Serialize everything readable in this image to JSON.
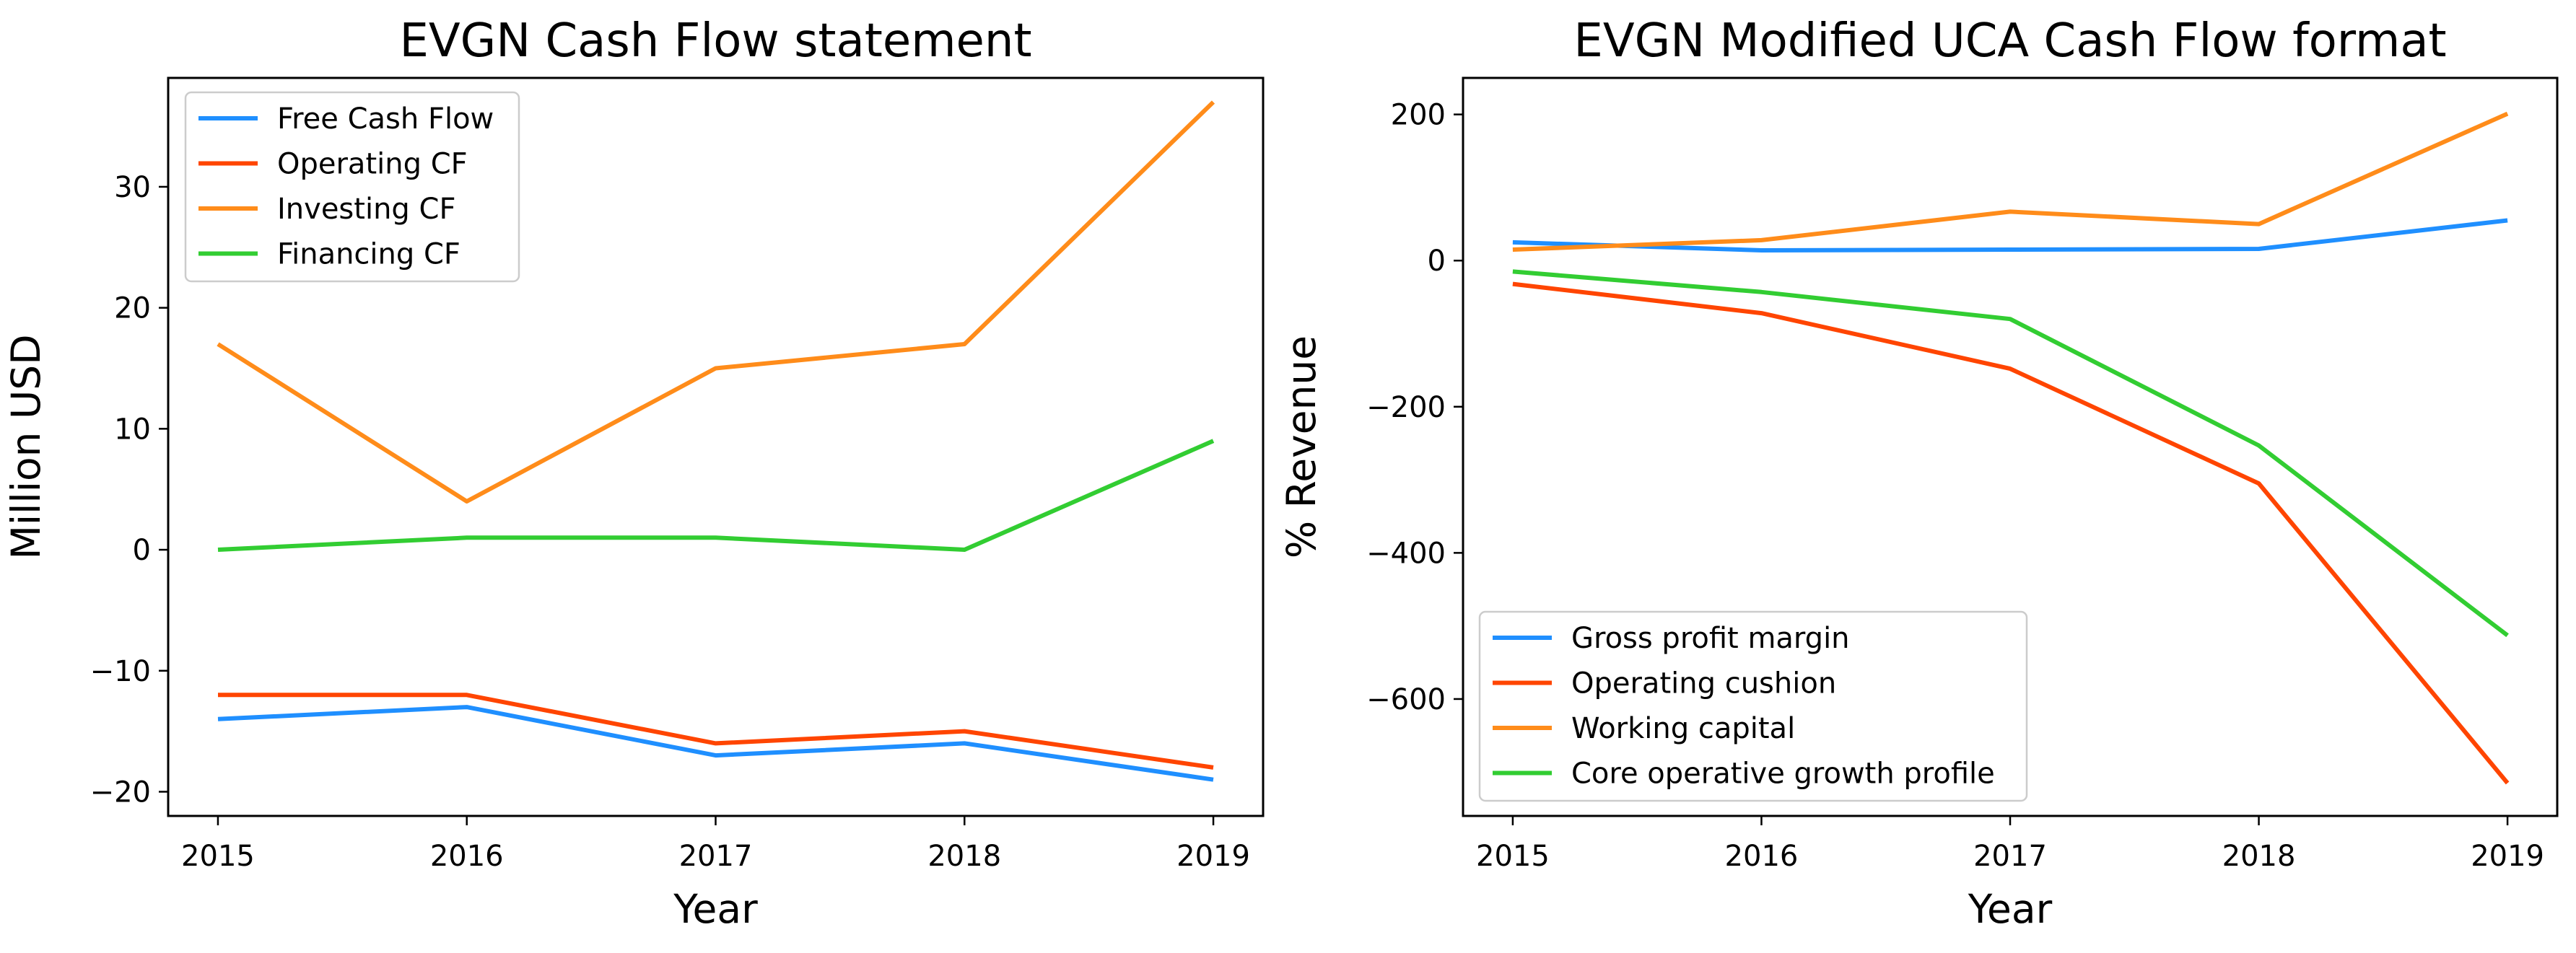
{
  "chart_data": [
    {
      "type": "line",
      "title": "EVGN Cash Flow statement",
      "xlabel": "Year",
      "ylabel": "Million USD",
      "x": [
        "2015",
        "2016",
        "2017",
        "2018",
        "2019"
      ],
      "xlim": [
        2014.8,
        2019.2
      ],
      "ylim": [
        -22,
        39
      ],
      "yticks": [
        -20,
        -10,
        0,
        10,
        20,
        30
      ],
      "grid": false,
      "legend_position": "upper left",
      "series": [
        {
          "name": "Free Cash Flow",
          "color": "#1f8fff",
          "values": [
            -14,
            -13,
            -17,
            -16,
            -19
          ]
        },
        {
          "name": "Operating CF",
          "color": "#ff4500",
          "values": [
            -12,
            -12,
            -16,
            -15,
            -18
          ]
        },
        {
          "name": "Investing CF",
          "color": "#ff8c1a",
          "values": [
            17,
            4,
            15,
            17,
            37
          ]
        },
        {
          "name": "Financing CF",
          "color": "#32cd32",
          "values": [
            0,
            1,
            1,
            0,
            9
          ]
        }
      ]
    },
    {
      "type": "line",
      "title": "EVGN Modified UCA Cash Flow format",
      "xlabel": "Year",
      "ylabel": "% Revenue",
      "x": [
        "2015",
        "2016",
        "2017",
        "2018",
        "2019"
      ],
      "xlim": [
        2014.8,
        2019.2
      ],
      "ylim": [
        -760,
        250
      ],
      "yticks": [
        -600,
        -400,
        -200,
        0,
        200
      ],
      "grid": false,
      "legend_position": "lower left",
      "series": [
        {
          "name": "Gross profit margin",
          "color": "#1f8fff",
          "values": [
            25,
            14,
            15,
            16,
            55
          ]
        },
        {
          "name": "Operating cushion",
          "color": "#ff4500",
          "values": [
            -32,
            -72,
            -148,
            -305,
            -715
          ]
        },
        {
          "name": "Working capital",
          "color": "#ff8c1a",
          "values": [
            15,
            28,
            67,
            50,
            201
          ]
        },
        {
          "name": "Core operative growth profile",
          "color": "#32cd32",
          "values": [
            -15,
            -43,
            -80,
            -253,
            -513
          ]
        }
      ]
    }
  ]
}
